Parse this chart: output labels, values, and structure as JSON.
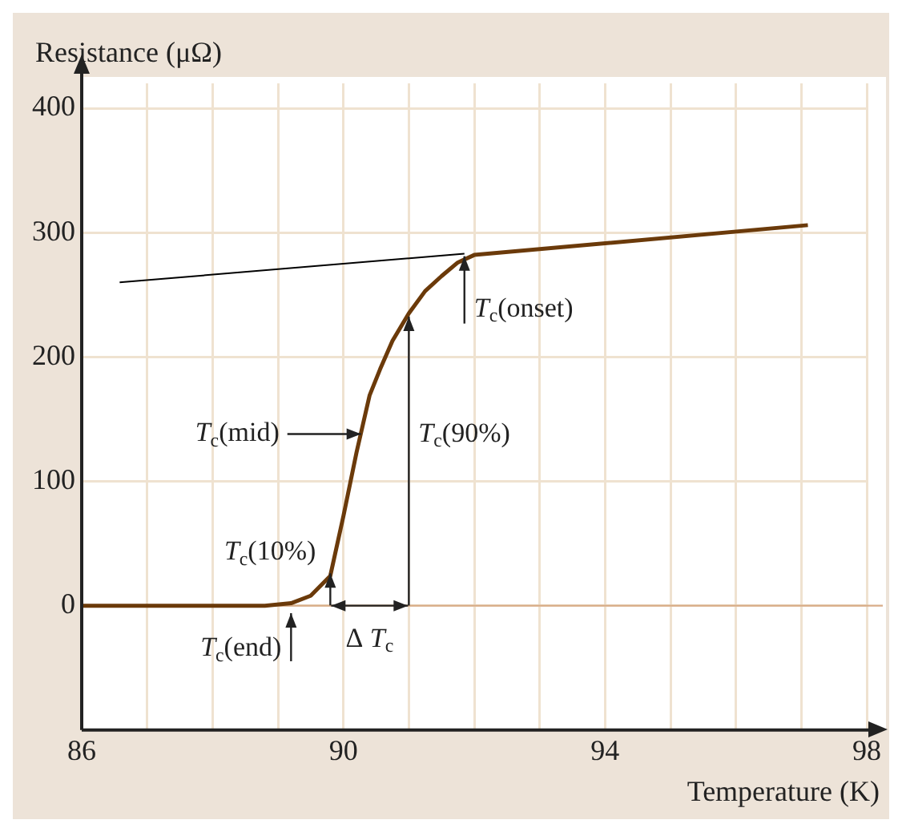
{
  "chart_data": {
    "type": "line",
    "xlabel": "Temperature (K)",
    "ylabel": "Resistance (μΩ)",
    "series": [
      {
        "color": "#6b3a0a",
        "x": [
          86,
          88.8,
          89.2,
          89.5,
          89.8,
          90.0,
          90.2,
          90.4,
          90.56,
          90.75,
          91.0,
          91.25,
          91.5,
          91.75,
          92.0,
          97.1
        ],
        "values": [
          0,
          0,
          2,
          8,
          24,
          72,
          123,
          169,
          190,
          213,
          235,
          253,
          265,
          276,
          282,
          306
        ]
      },
      {
        "color": "#000000",
        "x": [
          86.58,
          91.85
        ],
        "values": [
          260,
          283
        ]
      }
    ],
    "xlim": [
      86,
      98
    ],
    "ylim": [
      -100,
      420
    ],
    "xticks": [
      86,
      {
        "value": 87,
        "label": null
      },
      {
        "value": 88,
        "label": null
      },
      {
        "value": 89,
        "label": null
      },
      90,
      {
        "value": 91,
        "label": null
      },
      {
        "value": 92,
        "label": null
      },
      {
        "value": 93,
        "label": null
      },
      94,
      {
        "value": 95,
        "label": null
      },
      {
        "value": 96,
        "label": null
      },
      {
        "value": 97,
        "label": null
      },
      98
    ],
    "yticks": [
      0,
      100,
      200,
      300,
      400
    ],
    "grid": true,
    "marker": "none",
    "line_style": "solid",
    "ref_lines": [
      {
        "axis": "y",
        "value": 0,
        "color": "#d8ad88"
      }
    ],
    "annotations": [
      {
        "text": "T$_{c}$(onset)",
        "x": 91.85,
        "y": 281
      },
      "T$_{c}$(90%)",
      {
        "text": "T$_{c}$(mid)",
        "x": 90.27,
        "y": 138
      },
      {
        "text": "T$_{c}$(10%)",
        "x": 89.8,
        "y": 26
      },
      {
        "text": "T$_{c}$(end)",
        "x": 89.2,
        "y": -6
      },
      {
        "text": "Δ T$_{c}$",
        "x": 90.4,
        "y": 0
      }
    ]
  }
}
